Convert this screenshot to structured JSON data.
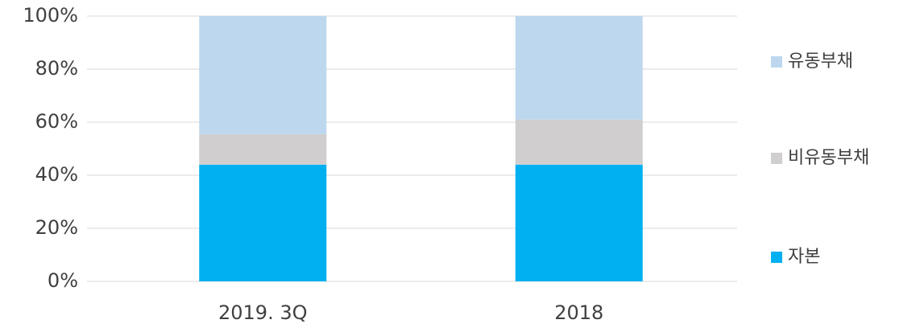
{
  "chart_data": {
    "type": "stacked_bar",
    "categories": [
      "2019. 3Q",
      "2018"
    ],
    "series": [
      {
        "name": "자본",
        "color": "#00b0f0",
        "values": [
          44,
          44
        ]
      },
      {
        "name": "비유동부채",
        "color": "#d0cece",
        "values": [
          11.5,
          17
        ]
      },
      {
        "name": "유동부채",
        "color": "#bdd7ee",
        "values": [
          44.5,
          39
        ]
      }
    ],
    "ylim": [
      0,
      100
    ],
    "yticks": [
      {
        "value": 0,
        "label": "0%"
      },
      {
        "value": 20,
        "label": "20%"
      },
      {
        "value": 40,
        "label": "40%"
      },
      {
        "value": 60,
        "label": "60%"
      },
      {
        "value": 80,
        "label": "80%"
      },
      {
        "value": 100,
        "label": "100%"
      }
    ],
    "grid": true,
    "legend": "right"
  }
}
